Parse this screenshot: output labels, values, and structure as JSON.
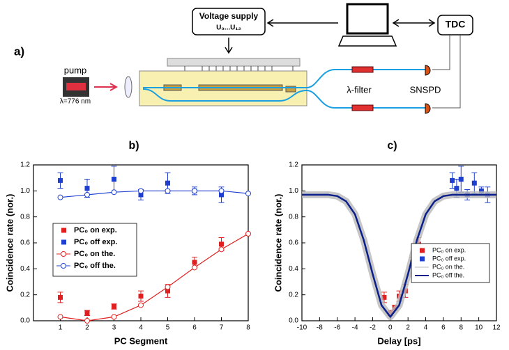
{
  "diagram": {
    "panel": "a)",
    "voltage_supply": "Voltage supply",
    "voltages": "U₀...U₁₂",
    "tdc": "TDC",
    "pump": "pump",
    "wavelength": "λ=776 nm",
    "filter": "λ-filter",
    "detector": "SNSPD"
  },
  "chart_data": [
    {
      "type": "scatter",
      "title": "b)",
      "xlabel": "PC Segment",
      "ylabel": "Coincidence rate (nor.)",
      "xlim": [
        0,
        8
      ],
      "xticks": [
        1,
        2,
        3,
        4,
        5,
        6,
        7,
        8
      ],
      "ylim": [
        0,
        1.2
      ],
      "yticks": [
        {
          "value": 0,
          "label": "0.0"
        },
        0.2,
        0.4,
        0.6,
        0.8,
        {
          "value": 1,
          "label": "1.0"
        },
        1.2
      ],
      "legend": "center left",
      "series": [
        {
          "name": "PC₀ on exp.",
          "color": "#e02020",
          "marker": "square",
          "line": false,
          "x": [
            1,
            2,
            3,
            4,
            5,
            6,
            7
          ],
          "values": [
            0.18,
            0.06,
            0.11,
            0.19,
            0.23,
            0.45,
            0.59
          ],
          "errors": [
            0.04,
            0.02,
            0.02,
            0.04,
            0.05,
            0.04,
            0.05
          ]
        },
        {
          "name": "PC₀ off  exp.",
          "color": "#1f3fd0",
          "marker": "square",
          "line": false,
          "x": [
            1,
            2,
            3,
            4,
            5,
            6,
            7
          ],
          "values": [
            1.08,
            1.02,
            1.09,
            0.97,
            1.06,
            1.0,
            0.97
          ],
          "errors": [
            0.06,
            0.07,
            0.1,
            0.04,
            0.08,
            0.03,
            0.06
          ]
        },
        {
          "name": "PC₀ on the.",
          "color": "#e02020",
          "marker": "open-circle",
          "line": true,
          "x": [
            1,
            2,
            3,
            4,
            5,
            6,
            7,
            8
          ],
          "values": [
            0.03,
            0.0,
            0.03,
            0.12,
            0.26,
            0.41,
            0.55,
            0.67
          ]
        },
        {
          "name": "PC₀ off the.",
          "color": "#1f3fd0",
          "marker": "open-circle",
          "line": true,
          "x": [
            1,
            2,
            3,
            4,
            5,
            6,
            7,
            8
          ],
          "values": [
            0.95,
            0.97,
            0.99,
            1.0,
            1.0,
            1.0,
            1.0,
            0.98
          ]
        }
      ]
    },
    {
      "type": "scatter",
      "title": "c)",
      "xlabel": "Delay [ps]",
      "ylabel": "Coincidence rate (nor.)",
      "xlim": [
        -10,
        12
      ],
      "xticks": [
        -10,
        -8,
        -6,
        -4,
        -2,
        0,
        2,
        4,
        6,
        8,
        10,
        12
      ],
      "ylim": [
        0,
        1.2
      ],
      "yticks": [
        {
          "value": 0,
          "label": "0.0"
        },
        0.2,
        0.4,
        0.6,
        0.8,
        {
          "value": 1,
          "label": "1.0"
        },
        1.2
      ],
      "legend": "lower right",
      "series": [
        {
          "name": "PC₀ on exp.",
          "color": "#e02020",
          "marker": "square",
          "line": false,
          "x": [
            -0.7,
            0,
            0.5,
            1,
            1.7,
            2.5,
            3.2
          ],
          "values": [
            0.18,
            0.06,
            0.1,
            0.19,
            0.23,
            0.45,
            0.59
          ],
          "errors": [
            0.04,
            0.02,
            0.02,
            0.04,
            0.05,
            0.04,
            0.05
          ]
        },
        {
          "name": "PC₀ off exp.",
          "color": "#1f3fd0",
          "marker": "square",
          "line": false,
          "x": [
            7,
            7.5,
            8,
            8.7,
            9.5,
            10.3,
            11
          ],
          "values": [
            1.08,
            1.02,
            1.09,
            0.97,
            1.06,
            1.0,
            0.97
          ],
          "errors": [
            0.06,
            0.07,
            0.1,
            0.04,
            0.08,
            0.03,
            0.06
          ]
        },
        {
          "name": "PC₀ on the.",
          "color": "#b8b8b8",
          "marker": "none",
          "line": true,
          "x": [
            -10,
            -9,
            -8,
            -7,
            -6,
            -5,
            -4,
            -3,
            -2,
            -1,
            0,
            1,
            2,
            3,
            4,
            5,
            6,
            7,
            8,
            9,
            10,
            11,
            12
          ],
          "values": [
            0.97,
            0.97,
            0.97,
            0.97,
            0.96,
            0.92,
            0.82,
            0.62,
            0.36,
            0.12,
            0.03,
            0.12,
            0.36,
            0.62,
            0.82,
            0.92,
            0.96,
            0.97,
            0.97,
            0.97,
            0.97,
            0.97,
            0.97
          ]
        },
        {
          "name": "PC₀ off the.",
          "color": "#0a1f8c",
          "marker": "none",
          "line": true,
          "x": [
            -10,
            -9,
            -8,
            -7,
            -6,
            -5,
            -4,
            -3,
            -2,
            -1,
            0,
            1,
            2,
            3,
            4,
            5,
            6,
            7,
            8,
            9,
            10,
            11,
            12
          ],
          "values": [
            0.97,
            0.97,
            0.97,
            0.97,
            0.96,
            0.92,
            0.82,
            0.62,
            0.36,
            0.12,
            0.03,
            0.12,
            0.36,
            0.62,
            0.82,
            0.92,
            0.96,
            0.97,
            0.97,
            0.97,
            0.97,
            0.97,
            0.97
          ]
        }
      ]
    }
  ]
}
